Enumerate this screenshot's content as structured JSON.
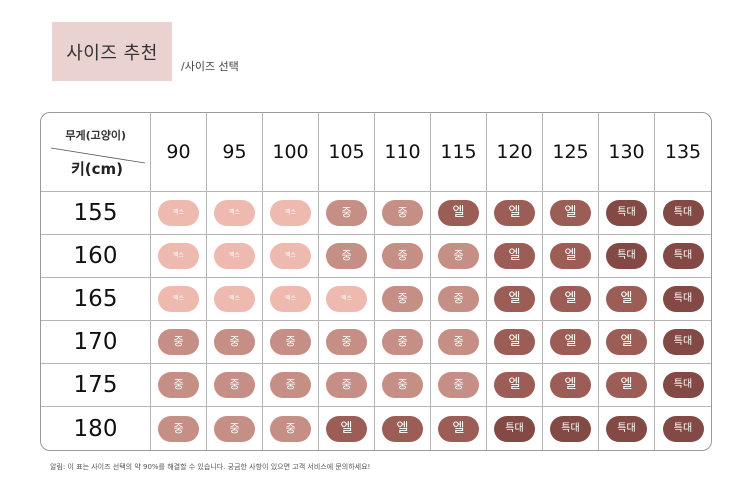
{
  "header": {
    "title": "사이즈 추천",
    "subtitle": "/사이즈 선택"
  },
  "table": {
    "corner": {
      "weight_label": "무게(고양이)",
      "height_label": "키(cm)"
    },
    "weights": [
      "90",
      "95",
      "100",
      "105",
      "110",
      "115",
      "120",
      "125",
      "130",
      "135"
    ],
    "size_labels": {
      "xs": "엑스",
      "m": "중",
      "l": "엘",
      "xl": "특대"
    },
    "rows": [
      {
        "height": "155",
        "sizes": [
          "xs",
          "xs",
          "xs",
          "m",
          "m",
          "l",
          "l",
          "l",
          "xl",
          "xl"
        ]
      },
      {
        "height": "160",
        "sizes": [
          "xs",
          "xs",
          "xs",
          "m",
          "m",
          "m",
          "l",
          "l",
          "xl",
          "xl"
        ]
      },
      {
        "height": "165",
        "sizes": [
          "xs",
          "xs",
          "xs",
          "xs",
          "m",
          "m",
          "l",
          "l",
          "l",
          "xl"
        ]
      },
      {
        "height": "170",
        "sizes": [
          "m",
          "m",
          "m",
          "m",
          "m",
          "m",
          "l",
          "l",
          "l",
          "xl"
        ]
      },
      {
        "height": "175",
        "sizes": [
          "m",
          "m",
          "m",
          "m",
          "m",
          "m",
          "l",
          "l",
          "l",
          "xl"
        ]
      },
      {
        "height": "180",
        "sizes": [
          "m",
          "m",
          "m",
          "l",
          "l",
          "l",
          "xl",
          "xl",
          "xl",
          "xl"
        ]
      }
    ]
  },
  "footer": {
    "note": "알림: 이 표는 사이즈 선택의 약 90%를 해결할 수 있습니다. 궁금한 사항이 있으면 고객 서비스에 문의하세요!"
  },
  "colors": {
    "title_bg": "#ead2d1",
    "xs": "#eebab0",
    "m": "#c58f86",
    "l": "#9b5d55",
    "xl": "#834945"
  }
}
